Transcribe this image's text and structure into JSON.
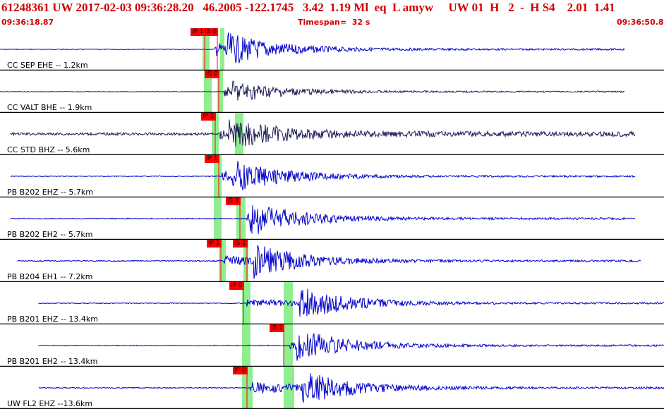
{
  "header": {
    "title_line": "61248361 UW 2017-02-03 09:36:28.20   46.2005 -122.1745   3.42  1.19 Ml  eq  L amyw     UW 01  H   2  -  H S4    2.01  1.41",
    "start_time": "09:36:18.87",
    "timespan": "Timespan=  32 s",
    "end_time": "09:36:50.80"
  },
  "colors": {
    "header_text": "#d00000",
    "trace_blue": "#0000cc",
    "trace_dark": "#1a1a55",
    "pick_flag": "#ff0000",
    "pick_window": "#90ee90",
    "panel_divider": "#000000"
  },
  "panels": [
    {
      "label": "CC SEP EHE -- 1.2km",
      "picks": [
        "iP 1",
        "iS 0"
      ],
      "trace_color": "#0000cc"
    },
    {
      "label": "CC VALT BHE -- 1.9km",
      "picks": [
        "iS 0"
      ],
      "trace_color": "#1a1a55"
    },
    {
      "label": "CC STD BHZ -- 5.6km",
      "picks": [
        "iP 1"
      ],
      "trace_color": "#1a1a55"
    },
    {
      "label": "PB B202 EHZ -- 5.7km",
      "picks": [
        "iP 1"
      ],
      "trace_color": "#0000cc"
    },
    {
      "label": "PB B202 EH2 -- 5.7km",
      "picks": [
        "iS 1"
      ],
      "trace_color": "#0000cc"
    },
    {
      "label": "PB B204 EH1 -- 7.2km",
      "picks": [
        "iP 1",
        "iS 1"
      ],
      "trace_color": "#0000cc"
    },
    {
      "label": "PB B201 EHZ -- 13.4km",
      "picks": [
        "iP 0"
      ],
      "trace_color": "#0000cc"
    },
    {
      "label": "PB B201 EH2 -- 13.4km",
      "picks": [
        "iS 1"
      ],
      "trace_color": "#0000cc"
    },
    {
      "label": "UW FL2 EHZ --13.6km",
      "picks": [
        "iP 0"
      ],
      "trace_color": "#0000cc"
    }
  ]
}
